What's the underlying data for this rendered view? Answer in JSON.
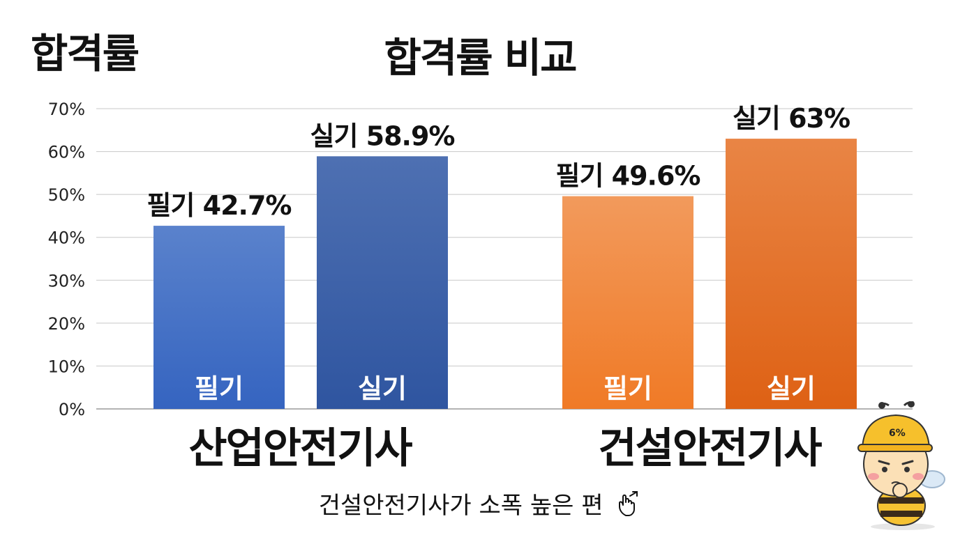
{
  "header": {
    "corner_title": "합격률"
  },
  "chart_data": {
    "type": "bar",
    "title": "합격률 비교",
    "ylim": [
      0,
      70
    ],
    "yticks": [
      0,
      10,
      20,
      30,
      40,
      50,
      60,
      70
    ],
    "ytick_suffix": "%",
    "grid": true,
    "groups": [
      {
        "name": "산업안전기사",
        "bars": [
          {
            "label": "필기",
            "value": 42.7,
            "value_label": "필기 42.7%",
            "color": "#3f6fc4"
          },
          {
            "label": "실기",
            "value": 58.9,
            "value_label": "실기 58.9%",
            "color": "#3a63b0"
          }
        ]
      },
      {
        "name": "건설안전기사",
        "bars": [
          {
            "label": "필기",
            "value": 49.6,
            "value_label": "필기 49.6%",
            "color": "#f08838"
          },
          {
            "label": "실기",
            "value": 63,
            "value_label": "실기 63%",
            "color": "#e87424"
          }
        ]
      }
    ]
  },
  "footnote": {
    "text": "건설안전기사가 소폭 높은 편",
    "icon": "pointing-hand-icon"
  },
  "mascot": {
    "badge": "6%",
    "icon": "bee-mascot-icon"
  }
}
